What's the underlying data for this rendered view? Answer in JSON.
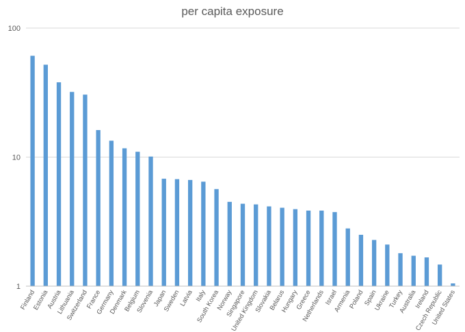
{
  "chart_data": {
    "type": "bar",
    "title": "per capita exposure",
    "xlabel": "",
    "ylabel": "",
    "yscale": "log",
    "ylim": [
      1,
      100
    ],
    "yticks": [
      "1",
      "10",
      "100"
    ],
    "grid": true,
    "bar_color": "#5b9bd5",
    "categories": [
      "Finland",
      "Estonia",
      "Austria",
      "Lithuania",
      "Switzerland",
      "France",
      "Germany",
      "Denmark",
      "Belgium",
      "Slovenia",
      "Japan",
      "Sweden",
      "Latvia",
      "Italy",
      "South Korea",
      "Norway",
      "Singapore",
      "United Kingdom",
      "Slovakia",
      "Belarus",
      "Hungary",
      "Greece",
      "Netherlands",
      "Israel",
      "Armenia",
      "Poland",
      "Spain",
      "Ukraine",
      "Turkey",
      "Australia",
      "Ireland",
      "Czech Republic",
      "United States"
    ],
    "values": [
      61,
      52,
      38,
      32,
      30.5,
      16.2,
      13.4,
      11.7,
      11.0,
      10.1,
      6.8,
      6.75,
      6.65,
      6.45,
      5.65,
      4.5,
      4.35,
      4.3,
      4.15,
      4.05,
      3.95,
      3.85,
      3.85,
      3.75,
      2.8,
      2.5,
      2.28,
      2.1,
      1.8,
      1.72,
      1.67,
      1.47,
      1.05
    ]
  }
}
